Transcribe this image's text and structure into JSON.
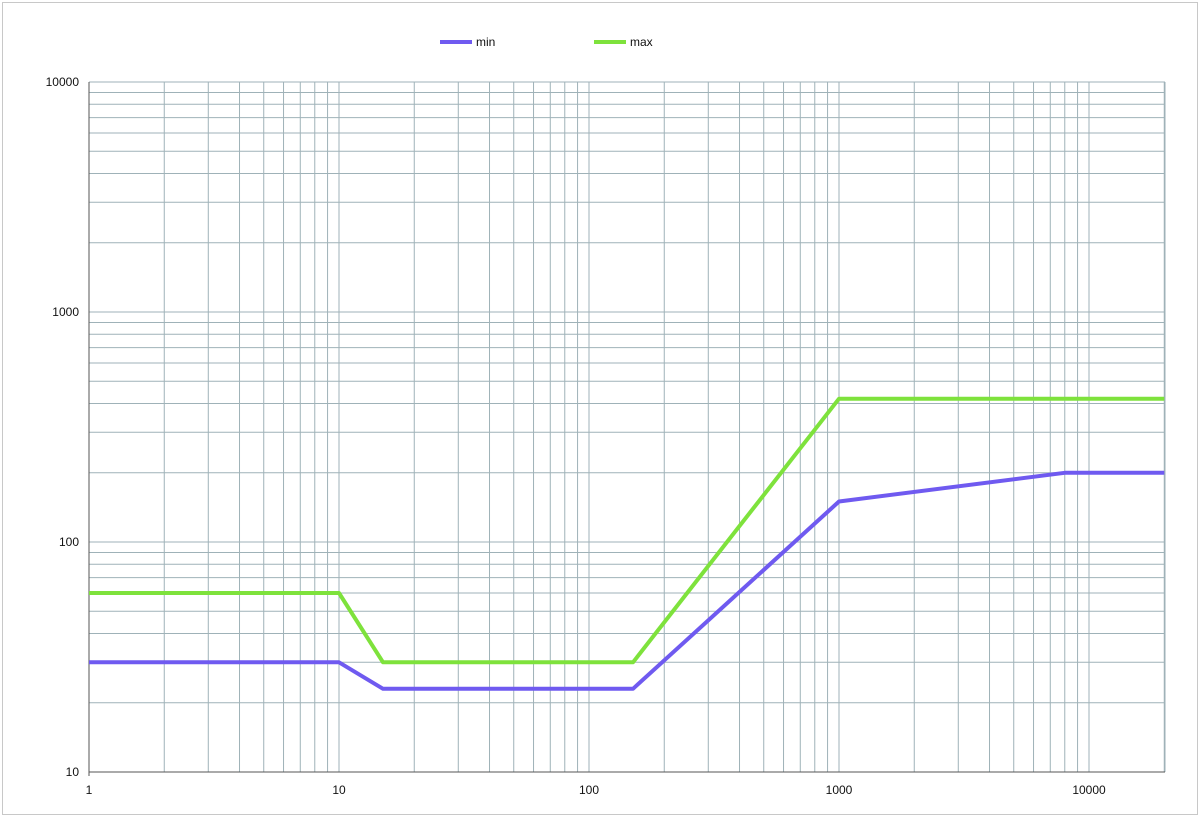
{
  "chart_data": {
    "type": "line",
    "title": "",
    "xlabel": "",
    "ylabel": "",
    "x_scale": "log",
    "y_scale": "log",
    "xlim": [
      1,
      20000
    ],
    "ylim": [
      10,
      10000
    ],
    "x_ticks": [
      1,
      10,
      100,
      1000,
      10000
    ],
    "x_tick_labels": [
      "1",
      "10",
      "100",
      "1000",
      "10000"
    ],
    "y_ticks": [
      10,
      100,
      1000,
      10000
    ],
    "y_tick_labels": [
      "10",
      "100",
      "1000",
      "10000"
    ],
    "grid": "major and minor, both axes",
    "legend_position": "top-left",
    "series": [
      {
        "name": "min",
        "color": "#6f5af0",
        "points": [
          [
            1,
            30
          ],
          [
            10,
            30
          ],
          [
            15,
            23
          ],
          [
            150,
            23
          ],
          [
            1000,
            150
          ],
          [
            8000,
            200
          ],
          [
            20000,
            200
          ]
        ]
      },
      {
        "name": "max",
        "color": "#7ee23c",
        "points": [
          [
            1,
            60
          ],
          [
            10,
            60
          ],
          [
            15,
            30
          ],
          [
            150,
            30
          ],
          [
            1000,
            420
          ],
          [
            20000,
            420
          ]
        ]
      }
    ]
  }
}
